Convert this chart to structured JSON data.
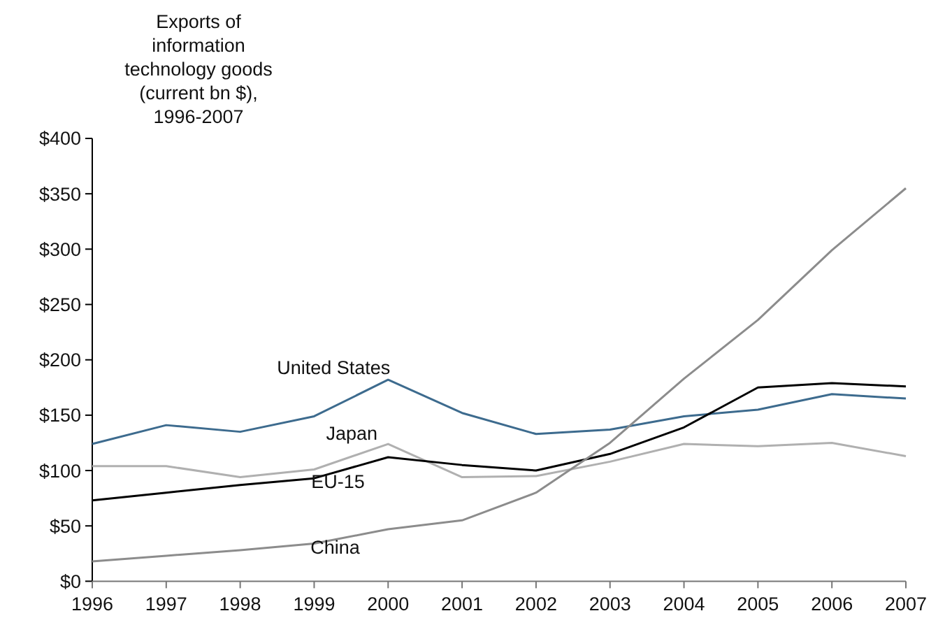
{
  "chart_data": {
    "type": "line",
    "title": "Exports of\ninformation\ntechnology goods\n(current bn $),\n1996-2007",
    "x": [
      1996,
      1997,
      1998,
      1999,
      2000,
      2001,
      2002,
      2003,
      2004,
      2005,
      2006,
      2007
    ],
    "xlim": [
      1996,
      2007
    ],
    "xticks": [
      1996,
      1997,
      1998,
      1999,
      2000,
      2001,
      2002,
      2003,
      2004,
      2005,
      2006,
      2007
    ],
    "ylim": [
      0,
      400
    ],
    "yticks": [
      {
        "value": 0,
        "label": "$0"
      },
      {
        "value": 50,
        "label": "$50"
      },
      {
        "value": 100,
        "label": "$100"
      },
      {
        "value": 150,
        "label": "$150"
      },
      {
        "value": 200,
        "label": "$200"
      },
      {
        "value": 250,
        "label": "$250"
      },
      {
        "value": 300,
        "label": "$300"
      },
      {
        "value": 350,
        "label": "$350"
      },
      {
        "value": 400,
        "label": "$400"
      }
    ],
    "grid": false,
    "legend": false,
    "marker": "none",
    "line_style": "solid",
    "series": [
      {
        "name": "United States",
        "color": "#3d6b8e",
        "values": [
          124,
          141,
          135,
          149,
          182,
          152,
          133,
          137,
          149,
          155,
          169,
          165
        ]
      },
      {
        "name": "Japan",
        "color": "#b0b0b0",
        "values": [
          104,
          104,
          94,
          101,
          124,
          94,
          95,
          108,
          124,
          122,
          125,
          113
        ]
      },
      {
        "name": "EU-15",
        "color": "#000000",
        "values": [
          73,
          80,
          87,
          93,
          112,
          105,
          100,
          115,
          139,
          175,
          179,
          176
        ]
      },
      {
        "name": "China",
        "color": "#8c8c8c",
        "values": [
          18,
          23,
          28,
          34,
          47,
          55,
          80,
          125,
          183,
          236,
          299,
          355
        ]
      }
    ]
  }
}
